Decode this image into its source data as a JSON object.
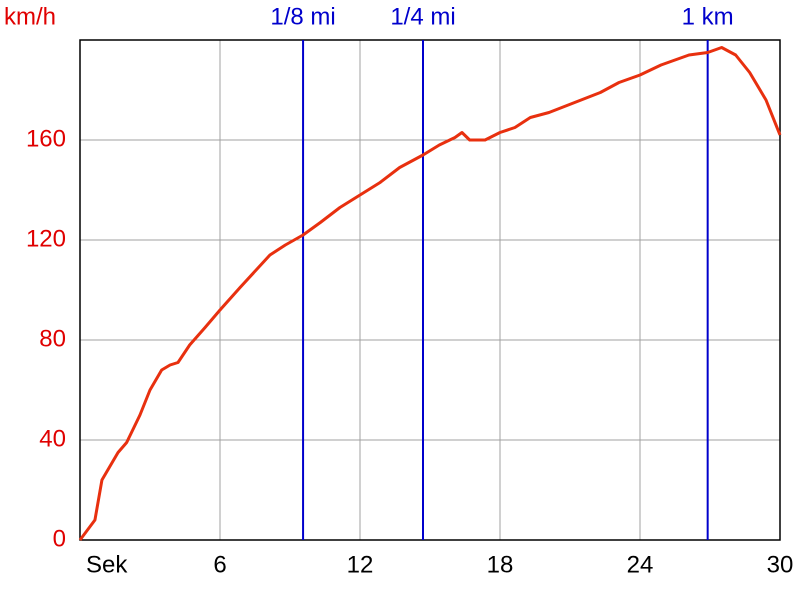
{
  "chart_data": {
    "type": "line",
    "y_label": "km/h",
    "x": [
      0,
      0.64,
      0.94,
      1.63,
      2.0,
      2.57,
      3.0,
      3.5,
      3.86,
      4.2,
      4.7,
      5.36,
      6,
      6.86,
      8.14,
      8.8,
      9.56,
      10.3,
      11.14,
      12,
      12.86,
      13.7,
      14.7,
      15.4,
      16.07,
      16.37,
      16.7,
      17.36,
      18,
      18.64,
      19.3,
      20.1,
      21.2,
      22.3,
      23.1,
      24,
      24.9,
      26.1,
      26.9,
      27.5,
      28.1,
      28.7,
      29.4,
      30
    ],
    "series": [
      {
        "color": "#e8300f",
        "values": [
          0,
          8,
          24,
          35,
          39,
          50,
          60,
          68,
          70,
          71,
          78,
          85,
          92,
          101,
          114,
          118,
          122,
          127,
          133,
          138,
          143,
          149,
          154,
          158,
          161,
          163,
          160,
          160,
          163,
          165,
          169,
          171,
          175,
          179,
          183,
          186,
          190,
          194,
          195,
          197,
          194,
          187,
          176,
          162
        ]
      }
    ],
    "markers": [
      {
        "label": "1/8 mi",
        "x": 9.56,
        "color": "#0000cc"
      },
      {
        "label": "1/4 mi",
        "x": 14.7,
        "color": "#0000cc"
      },
      {
        "label": "1 km",
        "x": 26.9,
        "color": "#0000cc"
      }
    ],
    "xlim": [
      0,
      30
    ],
    "ylim": [
      0,
      200
    ],
    "xticks": [
      {
        "value": 0,
        "label": "Sek"
      },
      6,
      12,
      18,
      24,
      30
    ],
    "yticks": [
      0,
      40,
      80,
      120,
      160
    ],
    "grid": true
  }
}
